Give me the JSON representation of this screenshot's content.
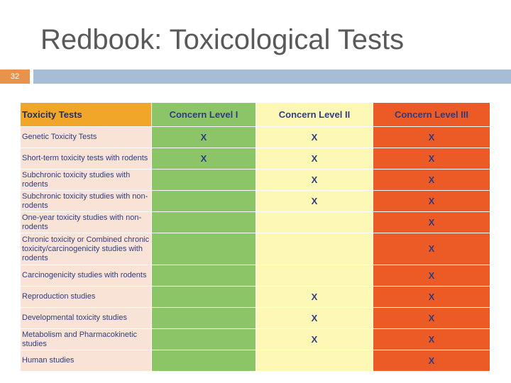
{
  "title": "Redbook: Toxicological Tests",
  "slide_number": "32",
  "table": {
    "headers": [
      "Toxicity Tests",
      "Concern Level I",
      "Concern Level II",
      "Concern Level III"
    ],
    "rows": [
      {
        "test": "Genetic Toxicity Tests",
        "l1": "X",
        "l2": "X",
        "l3": "X"
      },
      {
        "test": "Short-term toxicity tests with rodents",
        "l1": "X",
        "l2": "X",
        "l3": "X"
      },
      {
        "test": "Subchronic toxicity studies with rodents",
        "l1": "",
        "l2": "X",
        "l3": "X"
      },
      {
        "test": "Subchronic toxicity studies with non-rodents",
        "l1": "",
        "l2": "X",
        "l3": "X"
      },
      {
        "test": "One-year toxicity studies with non-rodents",
        "l1": "",
        "l2": "",
        "l3": "X"
      },
      {
        "test": "Chronic toxicity or Combined chronic toxicity/carcinogenicity studies with rodents",
        "l1": "",
        "l2": "",
        "l3": "X"
      },
      {
        "test": "Carcinogenicity studies with rodents",
        "l1": "",
        "l2": "",
        "l3": "X"
      },
      {
        "test": "Reproduction studies",
        "l1": "",
        "l2": "X",
        "l3": "X"
      },
      {
        "test": "Developmental toxicity studies",
        "l1": "",
        "l2": "X",
        "l3": "X"
      },
      {
        "test": "Metabolism and Pharmacokinetic studies",
        "l1": "",
        "l2": "X",
        "l3": "X"
      },
      {
        "test": "Human studies",
        "l1": "",
        "l2": "",
        "l3": "X"
      }
    ]
  },
  "colors": {
    "level1": "#8cc468",
    "level2": "#fdf8b6",
    "level3": "#ec5a26",
    "header_first": "#f1a62a",
    "first_column": "#f9e3d6",
    "accent_bar": "#a7bdd5",
    "slide_number_bg": "#e8924c"
  }
}
